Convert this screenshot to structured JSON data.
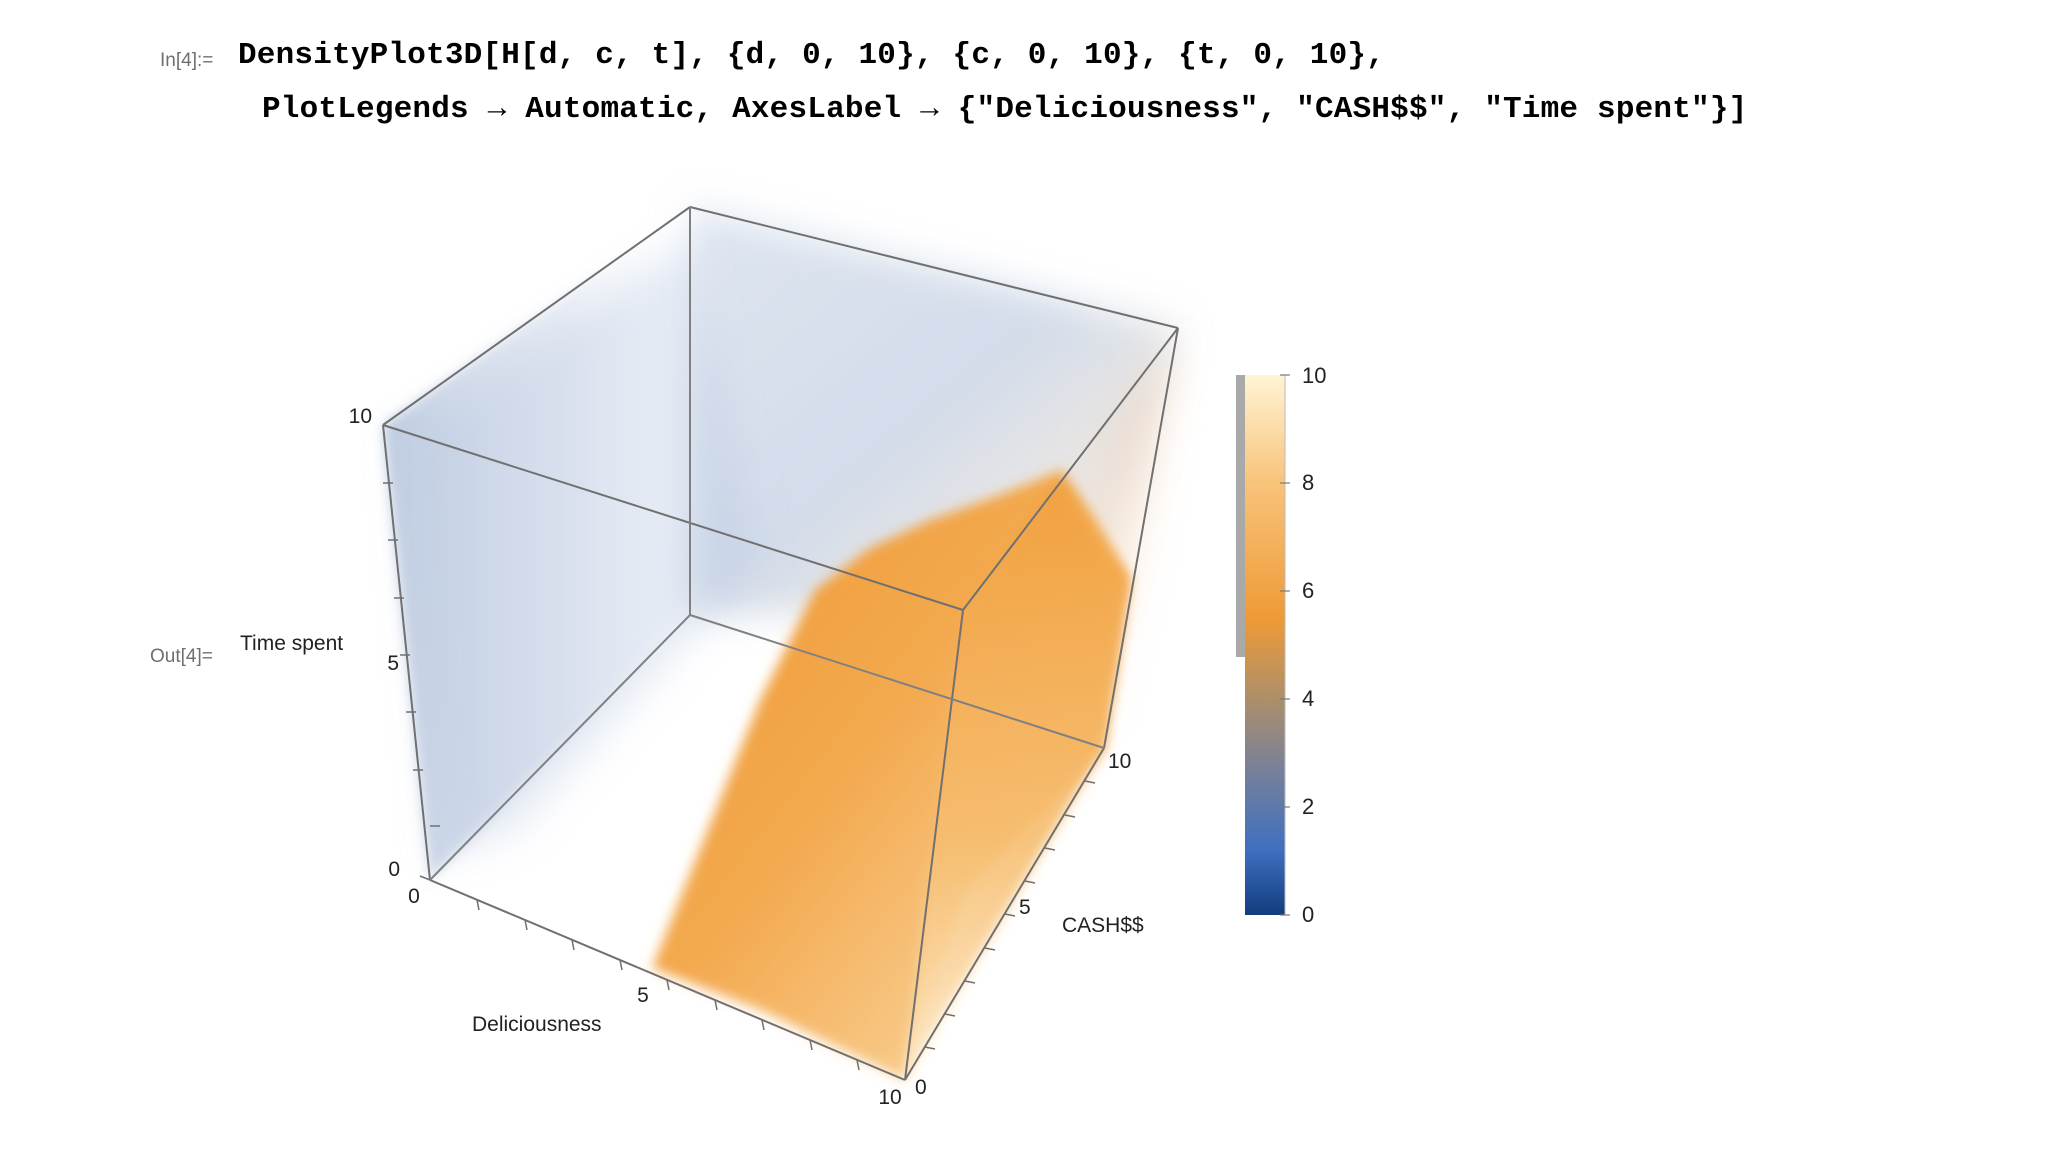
{
  "input": {
    "label": "In[4]:=",
    "line1": "DensityPlot3D[H[d, c, t], {d, 0, 10}, {c, 0, 10}, {t, 0, 10},",
    "line2": "PlotLegends → Automatic, AxesLabel → {\"Deliciousness\", \"CASH$$\", \"Time spent\"}]"
  },
  "output": {
    "label": "Out[4]="
  },
  "chart_data": {
    "type": "heatmap",
    "plot_kind": "3d-density",
    "axes": {
      "x": {
        "label": "Deliciousness",
        "range": [
          0,
          10
        ],
        "tick_labels": [
          "0",
          "5",
          "10"
        ]
      },
      "y": {
        "label": "CASH$$",
        "range": [
          0,
          10
        ],
        "tick_labels": [
          "0",
          "5",
          "10"
        ]
      },
      "z": {
        "label": "Time spent",
        "range": [
          0,
          10
        ],
        "tick_labels": [
          "0",
          "5",
          "10"
        ]
      }
    },
    "legend": {
      "placement": "right",
      "range": [
        0,
        10
      ],
      "tick_labels": [
        "0",
        "2",
        "4",
        "6",
        "8",
        "10"
      ],
      "stops": [
        {
          "value": 0,
          "color": "#123d7e"
        },
        {
          "value": 1.2,
          "color": "#3f6fc0"
        },
        {
          "value": 2.5,
          "color": "#6f7f9e"
        },
        {
          "value": 4,
          "color": "#ad8f6a"
        },
        {
          "value": 5.5,
          "color": "#ef9a36"
        },
        {
          "value": 8,
          "color": "#f8c37a"
        },
        {
          "value": 10,
          "color": "#fff4d4"
        }
      ],
      "opacity_marker_range": [
        4.8,
        10
      ]
    },
    "colors": {
      "low_region": "#7f9cc8",
      "high_region": "#f09a38",
      "frame": "#666666"
    }
  }
}
